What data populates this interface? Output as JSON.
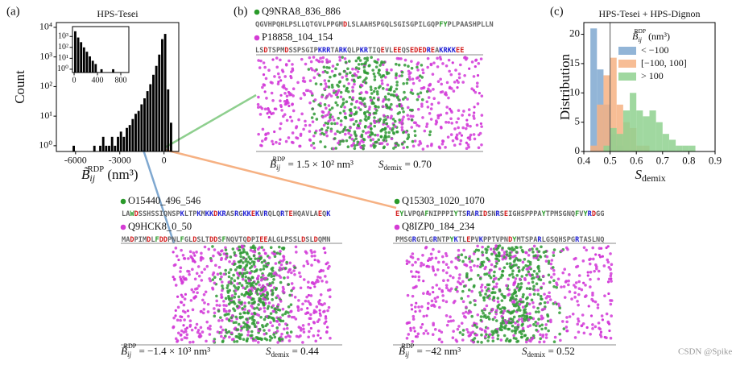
{
  "chart_data": [
    {
      "type": "histogram",
      "panel": "(a)",
      "title": "HPS-Tesei",
      "xlabel": {
        "symbol": "B̃",
        "sub": "ij",
        "sup": "RDP",
        "text": " (nm³)"
      },
      "ylabel": "Count",
      "log_y": true,
      "color": "#000000",
      "bins": [
        -6400,
        -6200,
        -6000,
        -5800,
        -5600,
        -5400,
        -5200,
        -5000,
        -4800,
        -4600,
        -4400,
        -4200,
        -4000,
        -3800,
        -3600,
        -3400,
        -3200,
        -3000,
        -2800,
        -2600,
        -2400,
        -2200,
        -2000,
        -1800,
        -1600,
        -1400,
        -1200,
        -1000,
        -800,
        -600,
        -400,
        -200,
        0,
        200,
        400,
        600
      ],
      "values": [
        0,
        1,
        0,
        0,
        0,
        0,
        0,
        0,
        1,
        0,
        1,
        2,
        1,
        1,
        2,
        1,
        2,
        3,
        2,
        4,
        5,
        8,
        12,
        15,
        25,
        40,
        70,
        120,
        250,
        500,
        1200,
        4000,
        6000,
        80,
        6
      ],
      "xlim": [
        -7300,
        1000
      ],
      "xticks": [
        -6000,
        -3000,
        0
      ],
      "ylim": [
        0.64,
        14500
      ],
      "yticks": [
        {
          "value": 1,
          "label": "10⁰"
        },
        {
          "value": 10,
          "label": "10¹"
        },
        {
          "value": 100,
          "label": "10²"
        },
        {
          "value": 1000,
          "label": "10³"
        },
        {
          "value": 10000,
          "label": "10⁴"
        }
      ]
    },
    {
      "type": "histogram",
      "log_y": true,
      "color": "#000000",
      "bins": [
        0,
        50,
        100,
        150,
        200,
        250,
        300,
        350,
        400,
        450,
        500,
        550,
        600,
        650,
        700,
        750,
        800
      ],
      "values": [
        3000,
        800,
        300,
        100,
        40,
        15,
        6,
        3,
        0,
        1,
        0,
        0,
        0,
        1,
        0,
        0
      ],
      "xlim": [
        -28,
        938
      ],
      "xticks": [
        0,
        400,
        800
      ],
      "ylim": [
        0.5,
        8000
      ],
      "yticks": [
        {
          "value": 1,
          "label": "10⁰"
        },
        {
          "value": 10,
          "label": "10¹"
        },
        {
          "value": 100,
          "label": "10²"
        },
        {
          "value": 1000,
          "label": "10³"
        }
      ]
    },
    {
      "type": "histogram",
      "panel": "(c)",
      "title": "HPS-Tesei + HPS-Dignon",
      "xlabel": {
        "symbol": "S",
        "sub": "demix"
      },
      "ylabel": "Distribution",
      "legend_title": {
        "symbol": "B̃",
        "sub": "ij",
        "sup": "RDP",
        "text": " (nm³)"
      },
      "bins": [
        0.425,
        0.45,
        0.475,
        0.5,
        0.525,
        0.55,
        0.575,
        0.6,
        0.625,
        0.65,
        0.675,
        0.7,
        0.725,
        0.75,
        0.775,
        0.8,
        0.825
      ],
      "series": [
        {
          "name": "< −100",
          "color": "#7fa8d0",
          "values": [
            21,
            14,
            8,
            3,
            1,
            0,
            0,
            0,
            0,
            0,
            0,
            0,
            0,
            0,
            0,
            0
          ]
        },
        {
          "name": "[−100, 100]",
          "color": "#f6b183",
          "values": [
            1,
            8,
            13,
            16,
            8,
            5,
            4,
            1,
            1,
            0,
            0,
            0,
            0,
            0,
            0,
            0
          ]
        },
        {
          "name": "> 100",
          "color": "#8fd18f",
          "values": [
            0,
            0,
            1,
            4,
            3,
            7,
            10,
            7,
            6,
            7,
            5,
            3,
            2,
            1,
            1,
            1
          ]
        }
      ],
      "vline": 0.5,
      "xlim": [
        0.4,
        0.9
      ],
      "xticks": [
        0.4,
        0.5,
        0.6,
        0.7,
        0.8,
        0.9
      ],
      "ylim": [
        0,
        22
      ],
      "yticks": [
        0,
        5,
        10,
        15,
        20
      ]
    }
  ],
  "panel_b_label": "(b)",
  "simulations": [
    {
      "proteins": [
        {
          "name": "Q9NRA8_836_886",
          "color": "#2a9a2a",
          "sequence": "QGVHPQHLPSLLQTGVLPPGMDLSLAAHSPGQLSGISGPILGQPFYPLPAASHPLLN"
        },
        {
          "name": "P18858_104_154",
          "color": "#d43bd4",
          "sequence": "LSDTSPMDSSPSGIPKRRTARKQLPKRTIQEVLEEQSEDEDREAKRKKEE"
        }
      ],
      "B": {
        "symbol": "B̃",
        "sub": "ij",
        "sup": "RDP",
        "text": " = 1.5 × 10² nm³"
      },
      "S": {
        "symbol": "S",
        "sub": "demix",
        "text": " = 0.70"
      }
    },
    {
      "proteins": [
        {
          "name": "O15440_496_546",
          "color": "#2a9a2a",
          "sequence": "LAWDSSHSSIQNSPKLTPKMKKDKRASRGKKEKVRQLQRTEHQAVLAEQK"
        },
        {
          "name": "Q9HCK8_0_50",
          "color": "#d43bd4",
          "sequence": "MADPIMDLFDDPNLFGLDSLTDDSFNQVTQDPIEEALGLPSSLDSLDQMN"
        }
      ],
      "B": {
        "symbol": "B̃",
        "sub": "ij",
        "sup": "RDP",
        "text": " = −1.4 × 10³ nm³"
      },
      "S": {
        "symbol": "S",
        "sub": "demix",
        "text": " = 0.44"
      }
    },
    {
      "proteins": [
        {
          "name": "Q15303_1020_1070",
          "color": "#2a9a2a",
          "sequence": "EYLVPQAFNIPPPIYTSRARIDSNRSEIGHSPPPAYTPMSGNQFVYRDGG"
        },
        {
          "name": "Q8IZP0_184_234",
          "color": "#d43bd4",
          "sequence": "PMSGRGTLGRNTPYKTLEPVKPPTVPNDYMTSPARLGSQHSPGRTASLNQ"
        }
      ],
      "B": {
        "symbol": "B̃",
        "sub": "ij",
        "sup": "RDP",
        "text": " = −42 nm³"
      },
      "S": {
        "symbol": "S",
        "sub": "demix",
        "text": " = 0.52"
      }
    }
  ],
  "watermark": "CSDN @SpikeKing"
}
